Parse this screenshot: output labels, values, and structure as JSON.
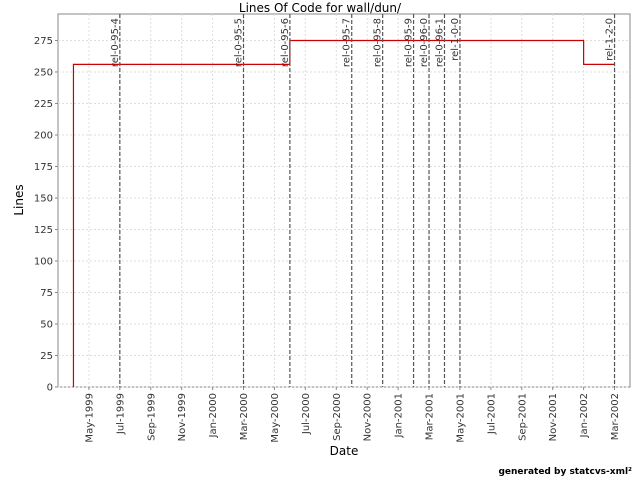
{
  "chart_data": {
    "type": "step",
    "title": "Lines Of Code for wall/dun/",
    "x_label": "Date",
    "y_label": "Lines",
    "footer": "generated by statcvs-xml²",
    "x": [
      "1999-04",
      "1999-04",
      "2000-06",
      "2000-06",
      "2002-01",
      "2002-01",
      "2002-03"
    ],
    "series": [
      {
        "name": "Lines",
        "color": "#cc0000",
        "values": [
          0,
          256,
          256,
          275,
          275,
          256,
          256
        ]
      }
    ],
    "markers": [
      {
        "label": "rel-0-95-4",
        "x": "1999-07"
      },
      {
        "label": "rel-0-95-5",
        "x": "2000-03"
      },
      {
        "label": "rel-0-95-6",
        "x": "2000-06"
      },
      {
        "label": "rel-0-95-7",
        "x": "2000-10"
      },
      {
        "label": "rel-0-95-8",
        "x": "2000-12"
      },
      {
        "label": "rel-0-95-9",
        "x": "2001-02"
      },
      {
        "label": "rel-0-96-0",
        "x": "2001-03"
      },
      {
        "label": "rel-0-96-1",
        "x": "2001-04"
      },
      {
        "label": "rel-1-0-0",
        "x": "2001-05"
      },
      {
        "label": "rel-1-2-0",
        "x": "2002-03"
      }
    ],
    "xlim": [
      "1999-03",
      "2002-04"
    ],
    "xticks": [
      {
        "value": "1999-05",
        "label": "May-1999"
      },
      {
        "value": "1999-07",
        "label": "Jul-1999"
      },
      {
        "value": "1999-09",
        "label": "Sep-1999"
      },
      {
        "value": "1999-11",
        "label": "Nov-1999"
      },
      {
        "value": "2000-01",
        "label": "Jan-2000"
      },
      {
        "value": "2000-03",
        "label": "Mar-2000"
      },
      {
        "value": "2000-05",
        "label": "May-2000"
      },
      {
        "value": "2000-07",
        "label": "Jul-2000"
      },
      {
        "value": "2000-09",
        "label": "Sep-2000"
      },
      {
        "value": "2000-11",
        "label": "Nov-2000"
      },
      {
        "value": "2001-01",
        "label": "Jan-2001"
      },
      {
        "value": "2001-03",
        "label": "Mar-2001"
      },
      {
        "value": "2001-05",
        "label": "May-2001"
      },
      {
        "value": "2001-07",
        "label": "Jul-2001"
      },
      {
        "value": "2001-09",
        "label": "Sep-2001"
      },
      {
        "value": "2001-11",
        "label": "Nov-2001"
      },
      {
        "value": "2002-01",
        "label": "Jan-2002"
      },
      {
        "value": "2002-03",
        "label": "Mar-2002"
      }
    ],
    "ylim": [
      0,
      296
    ],
    "yticks": [
      0,
      25,
      50,
      75,
      100,
      125,
      150,
      175,
      200,
      225,
      250,
      275
    ],
    "grid": true
  }
}
